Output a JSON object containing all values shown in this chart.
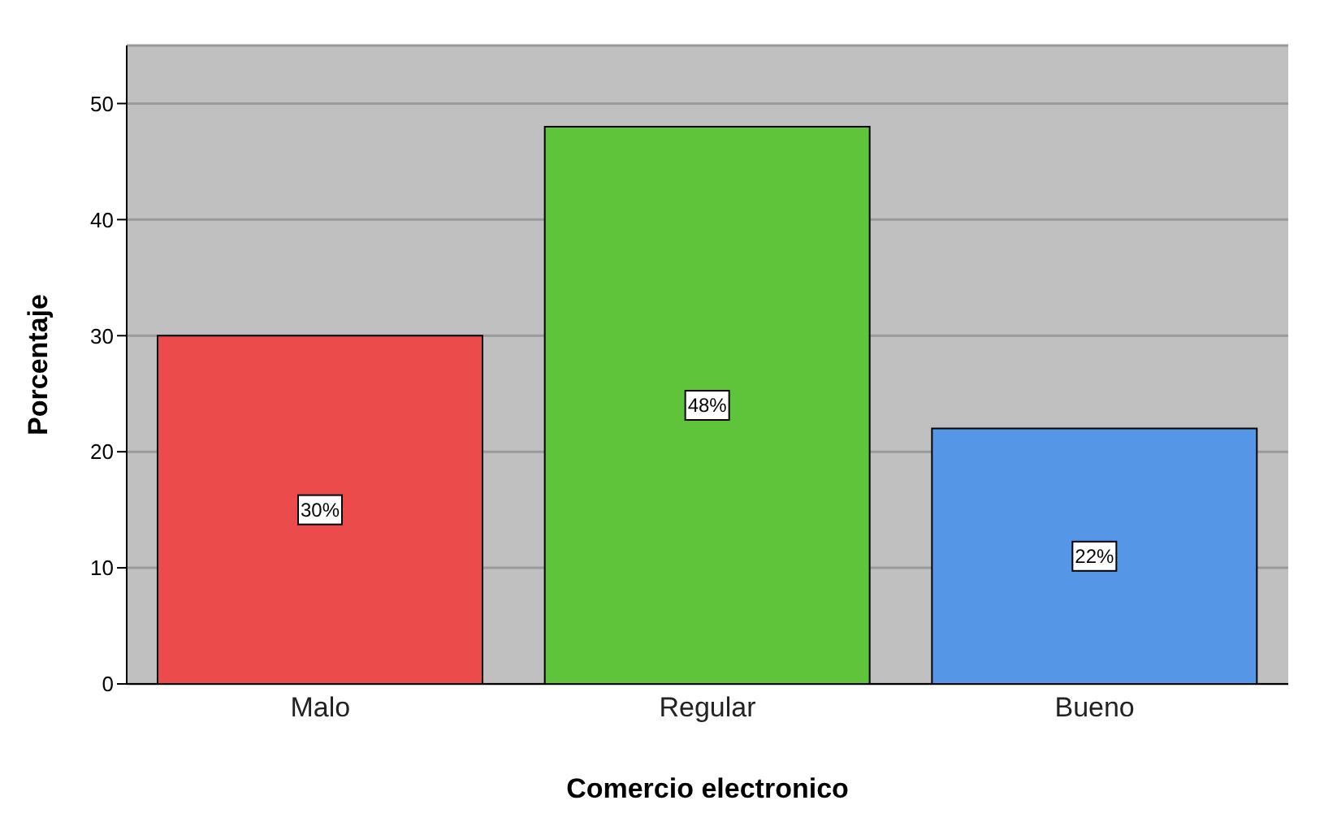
{
  "chart_data": {
    "type": "bar",
    "xlabel": "Comercio electronico",
    "ylabel": "Porcentaje",
    "categories": [
      "Malo",
      "Regular",
      "Bueno"
    ],
    "values": [
      30,
      48,
      22
    ],
    "colors": [
      "#ec4b4b",
      "#5fc439",
      "#5596e6"
    ],
    "value_labels": [
      "30%",
      "48%",
      "22%"
    ],
    "ylim": [
      0,
      55
    ],
    "yticks": [
      0,
      10,
      20,
      30,
      40,
      50
    ],
    "grid": "y"
  }
}
